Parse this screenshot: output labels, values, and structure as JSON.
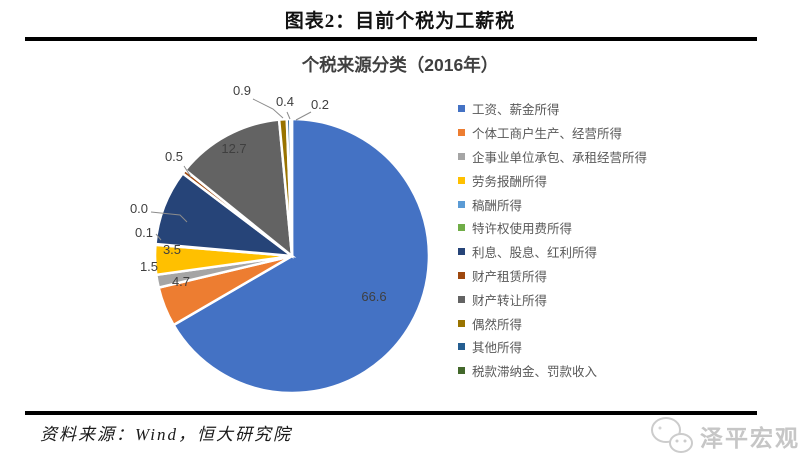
{
  "header": {
    "title": "图表2：目前个税为工薪税"
  },
  "chart_data": {
    "type": "pie",
    "title": "个税来源分类（2016年）",
    "unit": "percent",
    "start_angle_deg": 0,
    "direction": "clockwise",
    "legend_position": "right",
    "slices": [
      {
        "name": "工资、薪金所得",
        "value": 66.6,
        "label": "66.6",
        "color": "#4472C4"
      },
      {
        "name": "个体工商户生产、经营所得",
        "value": 4.7,
        "label": "4.7",
        "color": "#ED7D31"
      },
      {
        "name": "企事业单位承包、承租经营所得",
        "value": 1.5,
        "label": "1.5",
        "color": "#A5A5A5"
      },
      {
        "name": "劳务报酬所得",
        "value": 3.5,
        "label": "3.5",
        "color": "#FFC000"
      },
      {
        "name": "稿酬所得",
        "value": 0.1,
        "label": "0.1",
        "color": "#5B9BD5"
      },
      {
        "name": "特许权使用费所得",
        "value": 0.0,
        "label": "0.0",
        "color": "#70AD47"
      },
      {
        "name": "利息、股息、红利所得",
        "value": 8.9,
        "label": "",
        "color": "#264478"
      },
      {
        "name": "财产租赁所得",
        "value": 0.5,
        "label": "0.5",
        "color": "#9E480E"
      },
      {
        "name": "财产转让所得",
        "value": 12.7,
        "label": "12.7",
        "color": "#636363"
      },
      {
        "name": "偶然所得",
        "value": 0.9,
        "label": "0.9",
        "color": "#997300"
      },
      {
        "name": "其他所得",
        "value": 0.4,
        "label": "0.4",
        "color": "#255E91"
      },
      {
        "name": "税款滞纳金、罚款收入",
        "value": 0.2,
        "label": "0.2",
        "color": "#43682B"
      }
    ]
  },
  "footer": {
    "source": "资料来源：Wind，恒大研究院",
    "watermark": "泽平宏观"
  }
}
